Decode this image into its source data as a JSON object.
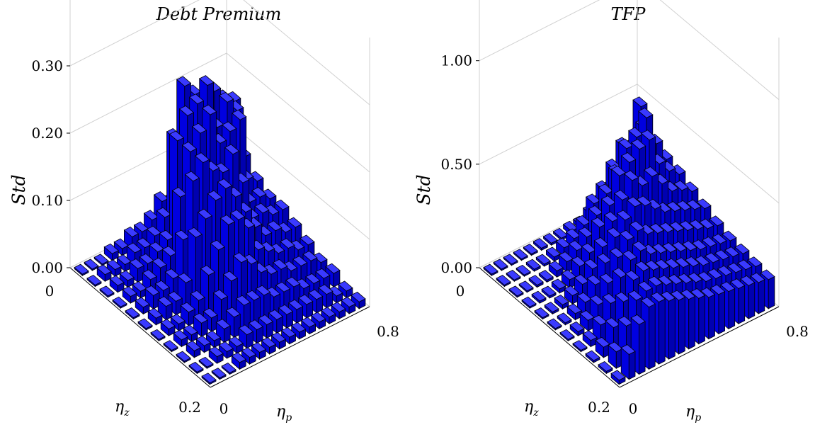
{
  "colors": {
    "bar_top": "#3a3aff",
    "bar_left": "#0000e0",
    "bar_right": "#0000b0",
    "grid": "#d0d0d0"
  },
  "chart_data": [
    {
      "type": "bar3d",
      "title": "Debt Premium",
      "zlabel": "Std",
      "xlabel_main": "η",
      "xlabel_sub": "z",
      "ylabel_main": "η",
      "ylabel_sub": "p",
      "zlim": [
        0,
        0.4
      ],
      "zticks": [
        "0.00",
        "0.10",
        "0.20",
        "0.30"
      ],
      "eta_z_ticks": [
        "0",
        "0.2"
      ],
      "eta_p_ticks": [
        "0",
        "0.8"
      ],
      "grid": "on",
      "values": [
        [
          0.0,
          0.0,
          0.0,
          0.01,
          0.01,
          0.02,
          0.02,
          0.03,
          0.05,
          0.04,
          0.05,
          0.06,
          0.05,
          0.06,
          0.05,
          0.12
        ],
        [
          0.0,
          0.01,
          0.01,
          0.01,
          0.02,
          0.02,
          0.03,
          0.05,
          0.16,
          0.23,
          0.21,
          0.16,
          0.2,
          0.18,
          0.17,
          0.08
        ],
        [
          0.0,
          0.01,
          0.01,
          0.02,
          0.02,
          0.03,
          0.04,
          0.18,
          0.21,
          0.22,
          0.24,
          0.17,
          0.2,
          0.18,
          0.07,
          0.06
        ],
        [
          0.0,
          0.01,
          0.01,
          0.02,
          0.03,
          0.04,
          0.12,
          0.18,
          0.2,
          0.22,
          0.17,
          0.18,
          0.19,
          0.06,
          0.06,
          0.05
        ],
        [
          0.0,
          0.01,
          0.02,
          0.02,
          0.03,
          0.08,
          0.16,
          0.18,
          0.16,
          0.15,
          0.17,
          0.12,
          0.06,
          0.06,
          0.05,
          0.05
        ],
        [
          0.0,
          0.01,
          0.02,
          0.02,
          0.04,
          0.1,
          0.12,
          0.14,
          0.15,
          0.13,
          0.1,
          0.07,
          0.05,
          0.05,
          0.04,
          0.04
        ],
        [
          0.0,
          0.01,
          0.01,
          0.02,
          0.03,
          0.06,
          0.09,
          0.12,
          0.12,
          0.1,
          0.06,
          0.05,
          0.04,
          0.04,
          0.03,
          0.03
        ],
        [
          0.0,
          0.01,
          0.01,
          0.02,
          0.02,
          0.04,
          0.06,
          0.08,
          0.07,
          0.05,
          0.04,
          0.04,
          0.03,
          0.03,
          0.03,
          0.02
        ],
        [
          0.0,
          0.01,
          0.01,
          0.01,
          0.02,
          0.03,
          0.04,
          0.04,
          0.04,
          0.03,
          0.03,
          0.03,
          0.02,
          0.02,
          0.02,
          0.02
        ],
        [
          0.0,
          0.0,
          0.01,
          0.01,
          0.01,
          0.02,
          0.02,
          0.02,
          0.02,
          0.02,
          0.02,
          0.02,
          0.02,
          0.02,
          0.01,
          0.01
        ],
        [
          0.0,
          0.0,
          0.0,
          0.01,
          0.01,
          0.01,
          0.01,
          0.01,
          0.01,
          0.01,
          0.01,
          0.01,
          0.01,
          0.01,
          0.01,
          0.01
        ]
      ]
    },
    {
      "type": "bar3d",
      "title": "TFP",
      "zlabel": "Std",
      "xlabel_main": "η",
      "xlabel_sub": "z",
      "ylabel_main": "η",
      "ylabel_sub": "p",
      "zlim": [
        0,
        1.3
      ],
      "zticks": [
        "0.00",
        "0.50",
        "1.00"
      ],
      "eta_z_ticks": [
        "0",
        "0.2"
      ],
      "eta_p_ticks": [
        "0",
        "0.8"
      ],
      "grid": "on",
      "values": [
        [
          0.0,
          0.0,
          0.0,
          0.0,
          0.0,
          0.01,
          0.01,
          0.01,
          0.02,
          0.02,
          0.05,
          0.08,
          0.12,
          0.15,
          0.2,
          0.45
        ],
        [
          0.0,
          0.0,
          0.0,
          0.01,
          0.01,
          0.02,
          0.04,
          0.06,
          0.1,
          0.18,
          0.22,
          0.3,
          0.38,
          0.35,
          0.42,
          0.32
        ],
        [
          0.0,
          0.0,
          0.01,
          0.01,
          0.03,
          0.05,
          0.08,
          0.12,
          0.2,
          0.28,
          0.35,
          0.45,
          0.48,
          0.55,
          0.4,
          0.3
        ],
        [
          0.0,
          0.01,
          0.01,
          0.02,
          0.04,
          0.08,
          0.12,
          0.22,
          0.3,
          0.42,
          0.46,
          0.5,
          0.52,
          0.38,
          0.32,
          0.28
        ],
        [
          0.0,
          0.01,
          0.02,
          0.04,
          0.07,
          0.12,
          0.2,
          0.3,
          0.38,
          0.45,
          0.4,
          0.42,
          0.36,
          0.3,
          0.28,
          0.25
        ],
        [
          0.0,
          0.01,
          0.03,
          0.06,
          0.12,
          0.2,
          0.3,
          0.36,
          0.4,
          0.38,
          0.34,
          0.3,
          0.28,
          0.26,
          0.24,
          0.22
        ],
        [
          0.0,
          0.02,
          0.05,
          0.1,
          0.18,
          0.28,
          0.34,
          0.36,
          0.32,
          0.3,
          0.28,
          0.26,
          0.24,
          0.22,
          0.2,
          0.19
        ],
        [
          0.0,
          0.03,
          0.08,
          0.16,
          0.26,
          0.32,
          0.34,
          0.3,
          0.28,
          0.26,
          0.24,
          0.22,
          0.2,
          0.19,
          0.18,
          0.17
        ],
        [
          0.01,
          0.05,
          0.12,
          0.22,
          0.3,
          0.32,
          0.3,
          0.28,
          0.26,
          0.24,
          0.22,
          0.2,
          0.19,
          0.18,
          0.17,
          0.16
        ],
        [
          0.01,
          0.08,
          0.18,
          0.28,
          0.3,
          0.3,
          0.28,
          0.26,
          0.24,
          0.22,
          0.2,
          0.19,
          0.18,
          0.17,
          0.16,
          0.15
        ],
        [
          0.02,
          0.12,
          0.24,
          0.3,
          0.3,
          0.28,
          0.26,
          0.24,
          0.22,
          0.2,
          0.19,
          0.18,
          0.17,
          0.16,
          0.15,
          0.14
        ]
      ]
    }
  ]
}
